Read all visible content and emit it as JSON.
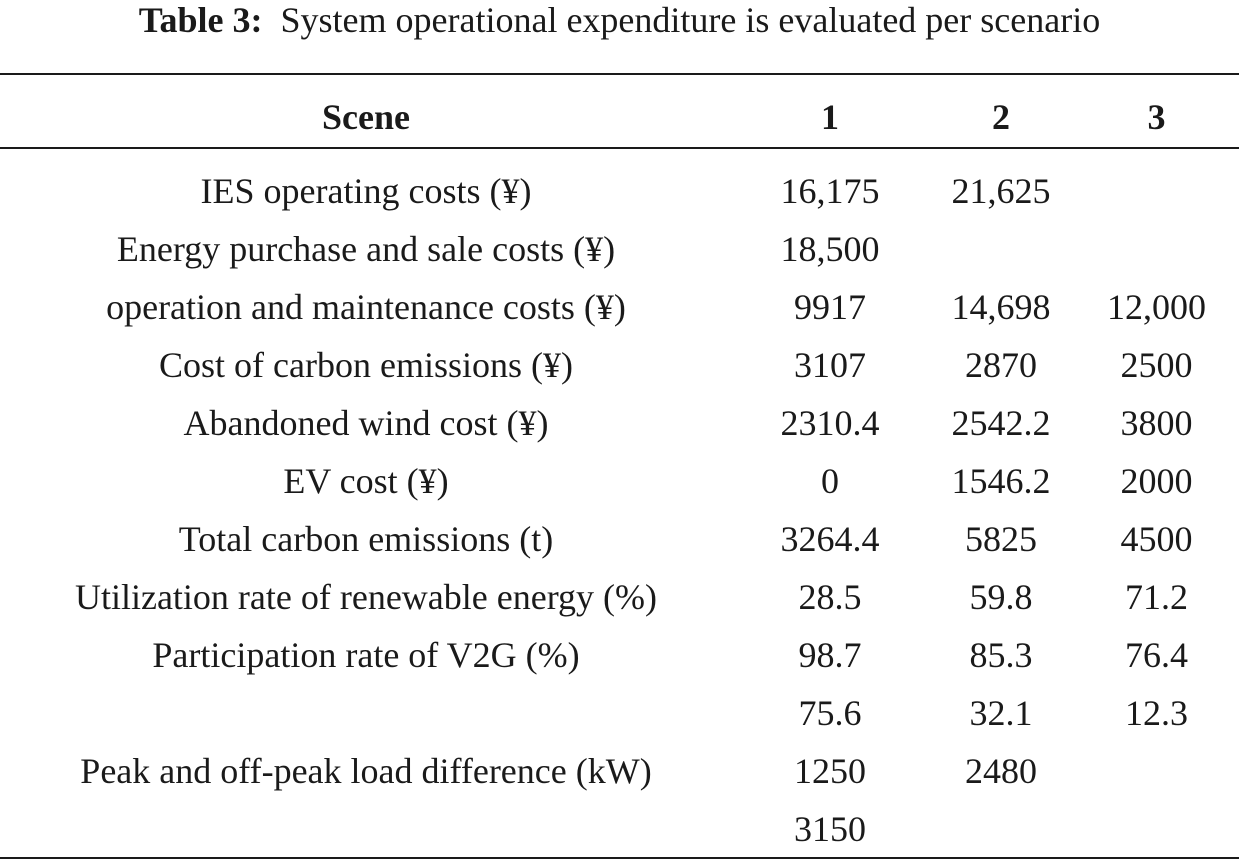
{
  "caption": {
    "label": "Table 3:",
    "text": "System operational expenditure is evaluated per scenario"
  },
  "table": {
    "columns": [
      "Scene",
      "1",
      "2",
      "3"
    ],
    "rows": [
      [
        "IES operating costs (¥)",
        "16,175",
        "21,625",
        ""
      ],
      [
        "Energy purchase and sale costs (¥)",
        "18,500",
        "",
        ""
      ],
      [
        "operation and maintenance costs (¥)",
        "9917",
        "14,698",
        "12,000"
      ],
      [
        "Cost of carbon emissions (¥)",
        "3107",
        "2870",
        "2500"
      ],
      [
        "Abandoned wind cost (¥)",
        "2310.4",
        "2542.2",
        "3800"
      ],
      [
        "EV cost (¥)",
        "0",
        "1546.2",
        "2000"
      ],
      [
        "Total carbon emissions (t)",
        "3264.4",
        "5825",
        "4500"
      ],
      [
        "Utilization rate of renewable energy (%)",
        "28.5",
        "59.8",
        "71.2"
      ],
      [
        "Participation rate of V2G (%)",
        "98.7",
        "85.3",
        "76.4"
      ],
      [
        "",
        "75.6",
        "32.1",
        "12.3"
      ],
      [
        "Peak and off-peak load difference (kW)",
        "1250",
        "2480",
        ""
      ],
      [
        "",
        "3150",
        "",
        ""
      ]
    ]
  }
}
